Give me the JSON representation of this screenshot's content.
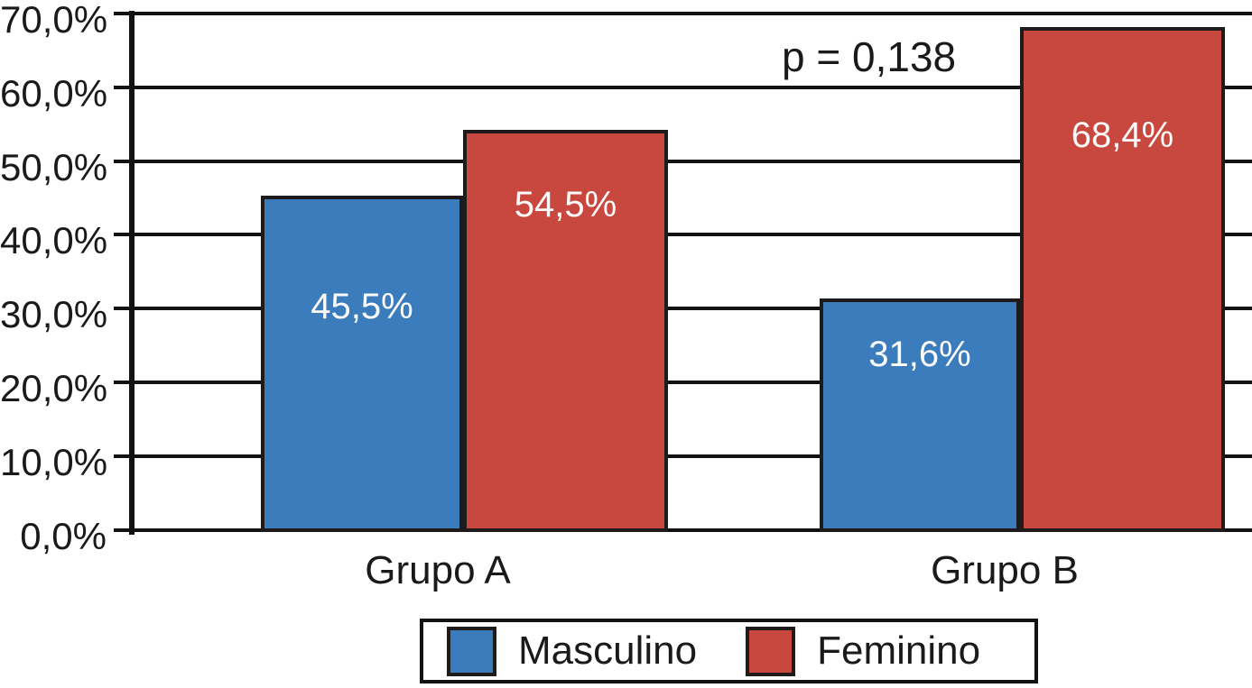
{
  "chart_data": {
    "type": "bar",
    "title": "",
    "xlabel": "",
    "ylabel": "",
    "categories": [
      "Grupo A",
      "Grupo B"
    ],
    "series": [
      {
        "name": "Masculino",
        "color": "#3b7cbd",
        "values": [
          45.5,
          31.6
        ],
        "value_labels": [
          "45,5%",
          "31,6%"
        ]
      },
      {
        "name": "Feminino",
        "color": "#c8473f",
        "values": [
          54.5,
          68.4
        ],
        "value_labels": [
          "54,5%",
          "68,4%"
        ]
      }
    ],
    "annotation": "p = 0,138",
    "y_axis": {
      "min": 0,
      "max": 70,
      "tick_step": 10,
      "tick_labels": [
        "0,0%",
        "10,0%",
        "20,0%",
        "30,0%",
        "40,0%",
        "50,0%",
        "60,0%",
        "70,0%"
      ]
    },
    "grid": true,
    "legend_position": "bottom"
  },
  "colors": {
    "masculino": "#3b7cbd",
    "feminino": "#c8473f",
    "line": "#121212",
    "bar_label_text": "#fdfcfb",
    "background": "#ffffff"
  }
}
